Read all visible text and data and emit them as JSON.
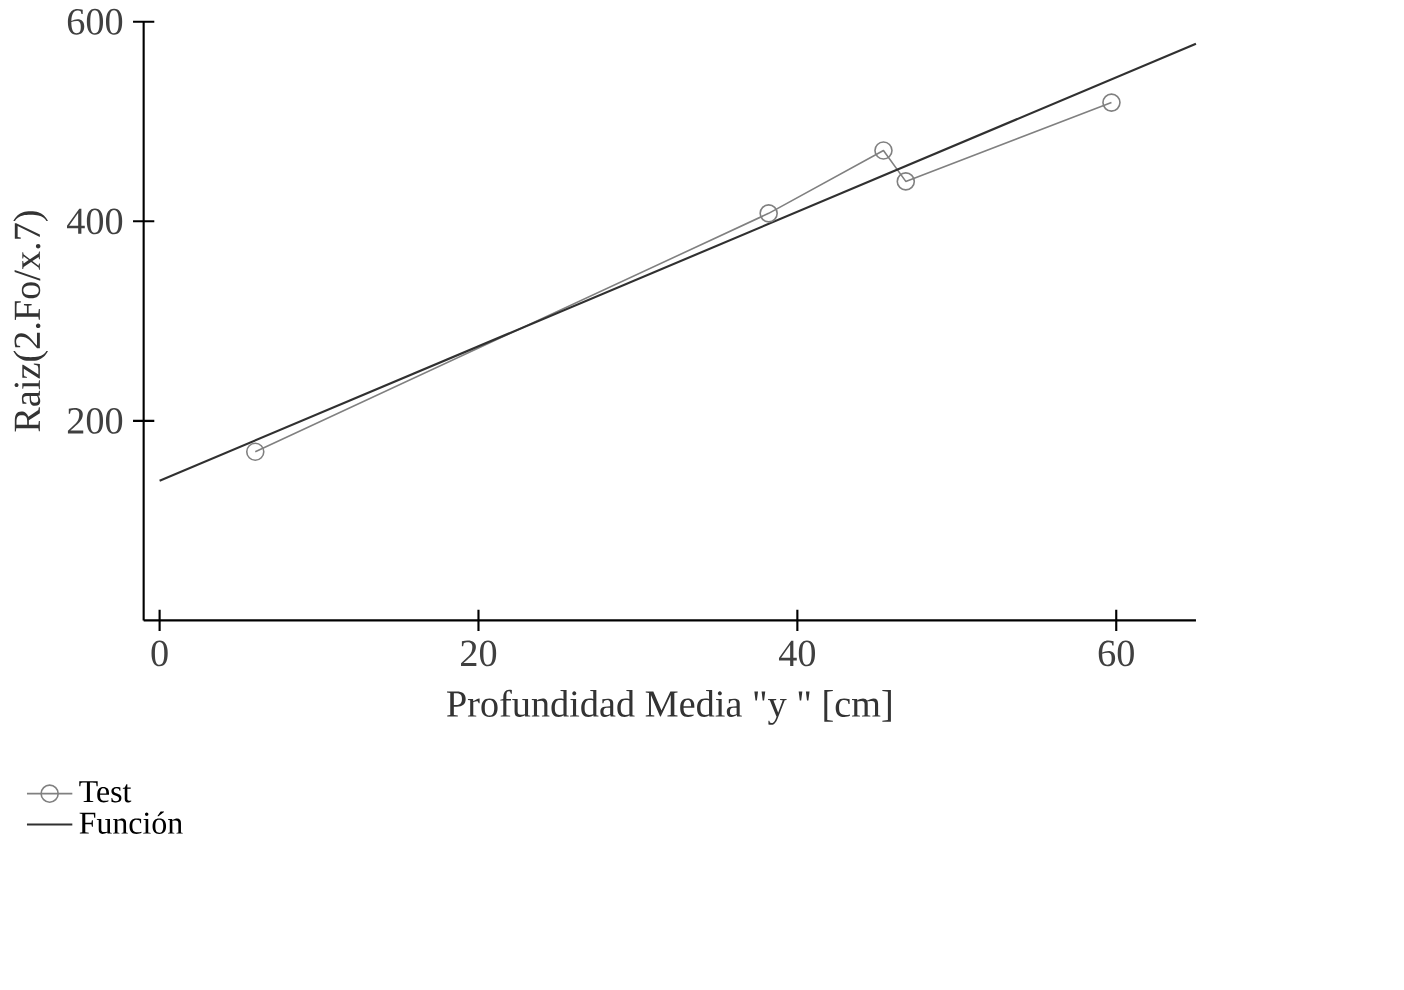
{
  "chart_data": {
    "type": "line",
    "xlabel": "Profundidad Media \"y \" [cm]",
    "ylabel": "Raiz(2.Fo/x.7)",
    "xlim": [
      -1,
      65
    ],
    "ylim": [
      0,
      600
    ],
    "xticks": [
      0,
      20,
      40,
      60
    ],
    "yticks": [
      200,
      400,
      600
    ],
    "grid": false,
    "legend": "bottom left",
    "series": [
      {
        "name": "Test",
        "color": "#808080",
        "marker": "circle",
        "x": [
          6.0,
          38.2,
          45.4,
          46.8,
          59.7
        ],
        "values": [
          169,
          408,
          471,
          440,
          519
        ]
      },
      {
        "name": "Función",
        "color": "#303030",
        "marker": "none",
        "x": [
          0,
          65
        ],
        "values": [
          140,
          578
        ]
      }
    ]
  }
}
